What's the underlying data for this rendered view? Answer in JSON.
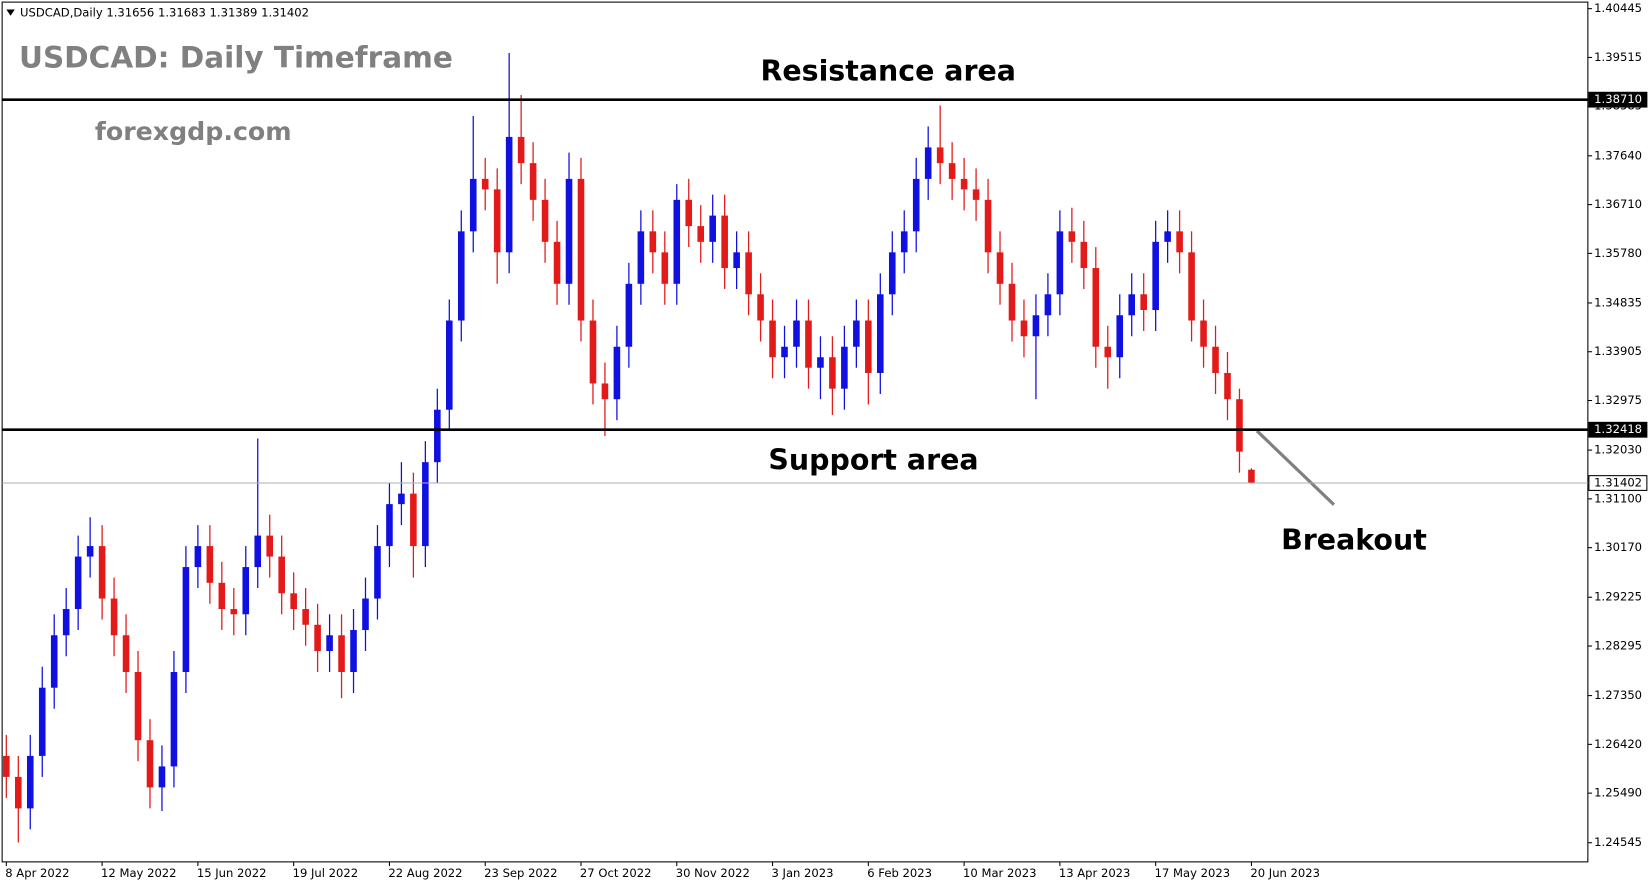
{
  "chart_data": {
    "type": "candlestick",
    "symbol": "USDCAD,Daily",
    "last_ohlc": [
      1.31656,
      1.31683,
      1.31389,
      1.31402
    ],
    "title": "USDCAD: Daily Timeframe",
    "subtitle": "forexgdp.com",
    "annotations": [
      "Resistance area",
      "Support area",
      "Breakout"
    ],
    "bull_color": "#1010e0",
    "bear_color": "#e31a1a",
    "grid": false,
    "xlim": [
      -0.35,
      132.1
    ],
    "ylim": [
      1.2418,
      1.4057
    ],
    "xticks": [
      {
        "value": 0,
        "label": "8 Apr 2022"
      },
      {
        "value": 8,
        "label": "12 May 2022"
      },
      {
        "value": 16,
        "label": "15 Jun 2022"
      },
      {
        "value": 24,
        "label": "19 Jul 2022"
      },
      {
        "value": 32,
        "label": "22 Aug 2022"
      },
      {
        "value": 40,
        "label": "23 Sep 2022"
      },
      {
        "value": 48,
        "label": "27 Oct 2022"
      },
      {
        "value": 56,
        "label": "30 Nov 2022"
      },
      {
        "value": 64,
        "label": "3 Jan 2023"
      },
      {
        "value": 72,
        "label": "6 Feb 2023"
      },
      {
        "value": 80,
        "label": "10 Mar 2023"
      },
      {
        "value": 88,
        "label": "13 Apr 2023"
      },
      {
        "value": 96,
        "label": "17 May 2023"
      },
      {
        "value": 104,
        "label": "20 Jun 2023"
      }
    ],
    "yticks": [
      {
        "value": 1.40445,
        "label": "1.40445"
      },
      {
        "value": 1.39515,
        "label": "1.39515"
      },
      {
        "value": 1.38585,
        "label": "1.38585"
      },
      {
        "value": 1.3764,
        "label": "1.37640"
      },
      {
        "value": 1.3671,
        "label": "1.36710"
      },
      {
        "value": 1.3578,
        "label": "1.35780"
      },
      {
        "value": 1.34835,
        "label": "1.34835"
      },
      {
        "value": 1.33905,
        "label": "1.33905"
      },
      {
        "value": 1.32975,
        "label": "1.32975"
      },
      {
        "value": 1.3203,
        "label": "1.32030"
      },
      {
        "value": 1.311,
        "label": "1.31100"
      },
      {
        "value": 1.3017,
        "label": "1.30170"
      },
      {
        "value": 1.29225,
        "label": "1.29225"
      },
      {
        "value": 1.28295,
        "label": "1.28295"
      },
      {
        "value": 1.2735,
        "label": "1.27350"
      },
      {
        "value": 1.2642,
        "label": "1.26420"
      },
      {
        "value": 1.2549,
        "label": "1.25490"
      },
      {
        "value": 1.24545,
        "label": "1.24545"
      }
    ],
    "levels": [
      {
        "value": 1.3871,
        "label": "1.38710",
        "color": "#000000"
      },
      {
        "value": 1.32418,
        "label": "1.32418",
        "color": "#000000"
      },
      {
        "value": 1.31402,
        "label": "1.31402",
        "color": "#a8b0b8"
      }
    ],
    "open": [
      1.262,
      1.258,
      1.252,
      1.262,
      1.275,
      1.285,
      1.29,
      1.3,
      1.302,
      1.292,
      1.285,
      1.278,
      1.265,
      1.256,
      1.26,
      1.278,
      1.298,
      1.302,
      1.295,
      1.29,
      1.289,
      1.298,
      1.304,
      1.3,
      1.293,
      1.29,
      1.287,
      1.282,
      1.285,
      1.278,
      1.286,
      1.292,
      1.302,
      1.31,
      1.312,
      1.302,
      1.318,
      1.328,
      1.345,
      1.362,
      1.372,
      1.37,
      1.358,
      1.38,
      1.375,
      1.368,
      1.36,
      1.352,
      1.372,
      1.345,
      1.333,
      1.33,
      1.34,
      1.352,
      1.362,
      1.358,
      1.352,
      1.368,
      1.363,
      1.36,
      1.365,
      1.355,
      1.358,
      1.35,
      1.345,
      1.338,
      1.34,
      1.345,
      1.336,
      1.338,
      1.332,
      1.34,
      1.345,
      1.335,
      1.35,
      1.358,
      1.362,
      1.372,
      1.378,
      1.375,
      1.372,
      1.37,
      1.368,
      1.358,
      1.352,
      1.345,
      1.342,
      1.346,
      1.35,
      1.362,
      1.36,
      1.355,
      1.34,
      1.338,
      1.346,
      1.35,
      1.347,
      1.36,
      1.362,
      1.358,
      1.345,
      1.34,
      1.335,
      1.33,
      1.31656
    ],
    "high": [
      1.266,
      1.262,
      1.266,
      1.279,
      1.289,
      1.294,
      1.304,
      1.3075,
      1.306,
      1.296,
      1.289,
      1.282,
      1.269,
      1.264,
      1.282,
      1.302,
      1.306,
      1.306,
      1.299,
      1.294,
      1.302,
      1.3225,
      1.308,
      1.304,
      1.297,
      1.294,
      1.291,
      1.289,
      1.289,
      1.29,
      1.296,
      1.306,
      1.314,
      1.318,
      1.316,
      1.322,
      1.332,
      1.349,
      1.366,
      1.384,
      1.376,
      1.374,
      1.396,
      1.388,
      1.379,
      1.372,
      1.364,
      1.377,
      1.376,
      1.349,
      1.337,
      1.344,
      1.356,
      1.366,
      1.366,
      1.362,
      1.371,
      1.372,
      1.367,
      1.369,
      1.369,
      1.362,
      1.362,
      1.354,
      1.349,
      1.344,
      1.349,
      1.349,
      1.342,
      1.342,
      1.344,
      1.349,
      1.349,
      1.354,
      1.362,
      1.366,
      1.376,
      1.382,
      1.386,
      1.379,
      1.376,
      1.374,
      1.372,
      1.362,
      1.356,
      1.349,
      1.35,
      1.354,
      1.366,
      1.3665,
      1.364,
      1.359,
      1.344,
      1.35,
      1.354,
      1.354,
      1.364,
      1.366,
      1.366,
      1.362,
      1.349,
      1.344,
      1.339,
      1.332,
      1.31683
    ],
    "low": [
      1.254,
      1.2455,
      1.248,
      1.258,
      1.271,
      1.281,
      1.286,
      1.296,
      1.288,
      1.281,
      1.274,
      1.261,
      1.252,
      1.2515,
      1.256,
      1.274,
      1.294,
      1.291,
      1.286,
      1.285,
      1.285,
      1.294,
      1.296,
      1.289,
      1.286,
      1.283,
      1.278,
      1.278,
      1.273,
      1.274,
      1.282,
      1.288,
      1.298,
      1.306,
      1.296,
      1.298,
      1.314,
      1.324,
      1.341,
      1.358,
      1.366,
      1.352,
      1.354,
      1.371,
      1.364,
      1.356,
      1.348,
      1.348,
      1.341,
      1.329,
      1.323,
      1.326,
      1.336,
      1.348,
      1.354,
      1.348,
      1.348,
      1.359,
      1.356,
      1.356,
      1.351,
      1.351,
      1.346,
      1.341,
      1.334,
      1.334,
      1.336,
      1.332,
      1.33,
      1.327,
      1.328,
      1.336,
      1.329,
      1.331,
      1.346,
      1.354,
      1.358,
      1.368,
      1.371,
      1.368,
      1.366,
      1.364,
      1.354,
      1.348,
      1.341,
      1.338,
      1.33,
      1.342,
      1.346,
      1.356,
      1.351,
      1.336,
      1.332,
      1.334,
      1.342,
      1.343,
      1.343,
      1.356,
      1.354,
      1.341,
      1.336,
      1.331,
      1.326,
      1.316,
      1.31389
    ],
    "close": [
      1.258,
      1.252,
      1.262,
      1.275,
      1.285,
      1.29,
      1.3,
      1.302,
      1.292,
      1.285,
      1.278,
      1.265,
      1.256,
      1.26,
      1.278,
      1.298,
      1.302,
      1.295,
      1.29,
      1.289,
      1.298,
      1.304,
      1.3,
      1.293,
      1.29,
      1.287,
      1.282,
      1.285,
      1.278,
      1.286,
      1.292,
      1.302,
      1.31,
      1.312,
      1.302,
      1.318,
      1.328,
      1.345,
      1.362,
      1.372,
      1.37,
      1.358,
      1.38,
      1.375,
      1.368,
      1.36,
      1.352,
      1.372,
      1.345,
      1.333,
      1.33,
      1.34,
      1.352,
      1.362,
      1.358,
      1.352,
      1.368,
      1.363,
      1.36,
      1.365,
      1.355,
      1.358,
      1.35,
      1.345,
      1.338,
      1.34,
      1.345,
      1.336,
      1.338,
      1.332,
      1.34,
      1.345,
      1.335,
      1.35,
      1.358,
      1.362,
      1.372,
      1.378,
      1.375,
      1.372,
      1.37,
      1.368,
      1.358,
      1.352,
      1.345,
      1.342,
      1.346,
      1.35,
      1.362,
      1.36,
      1.355,
      1.34,
      1.338,
      1.346,
      1.35,
      1.347,
      1.36,
      1.362,
      1.358,
      1.345,
      1.34,
      1.335,
      1.33,
      1.32,
      1.31402
    ]
  }
}
